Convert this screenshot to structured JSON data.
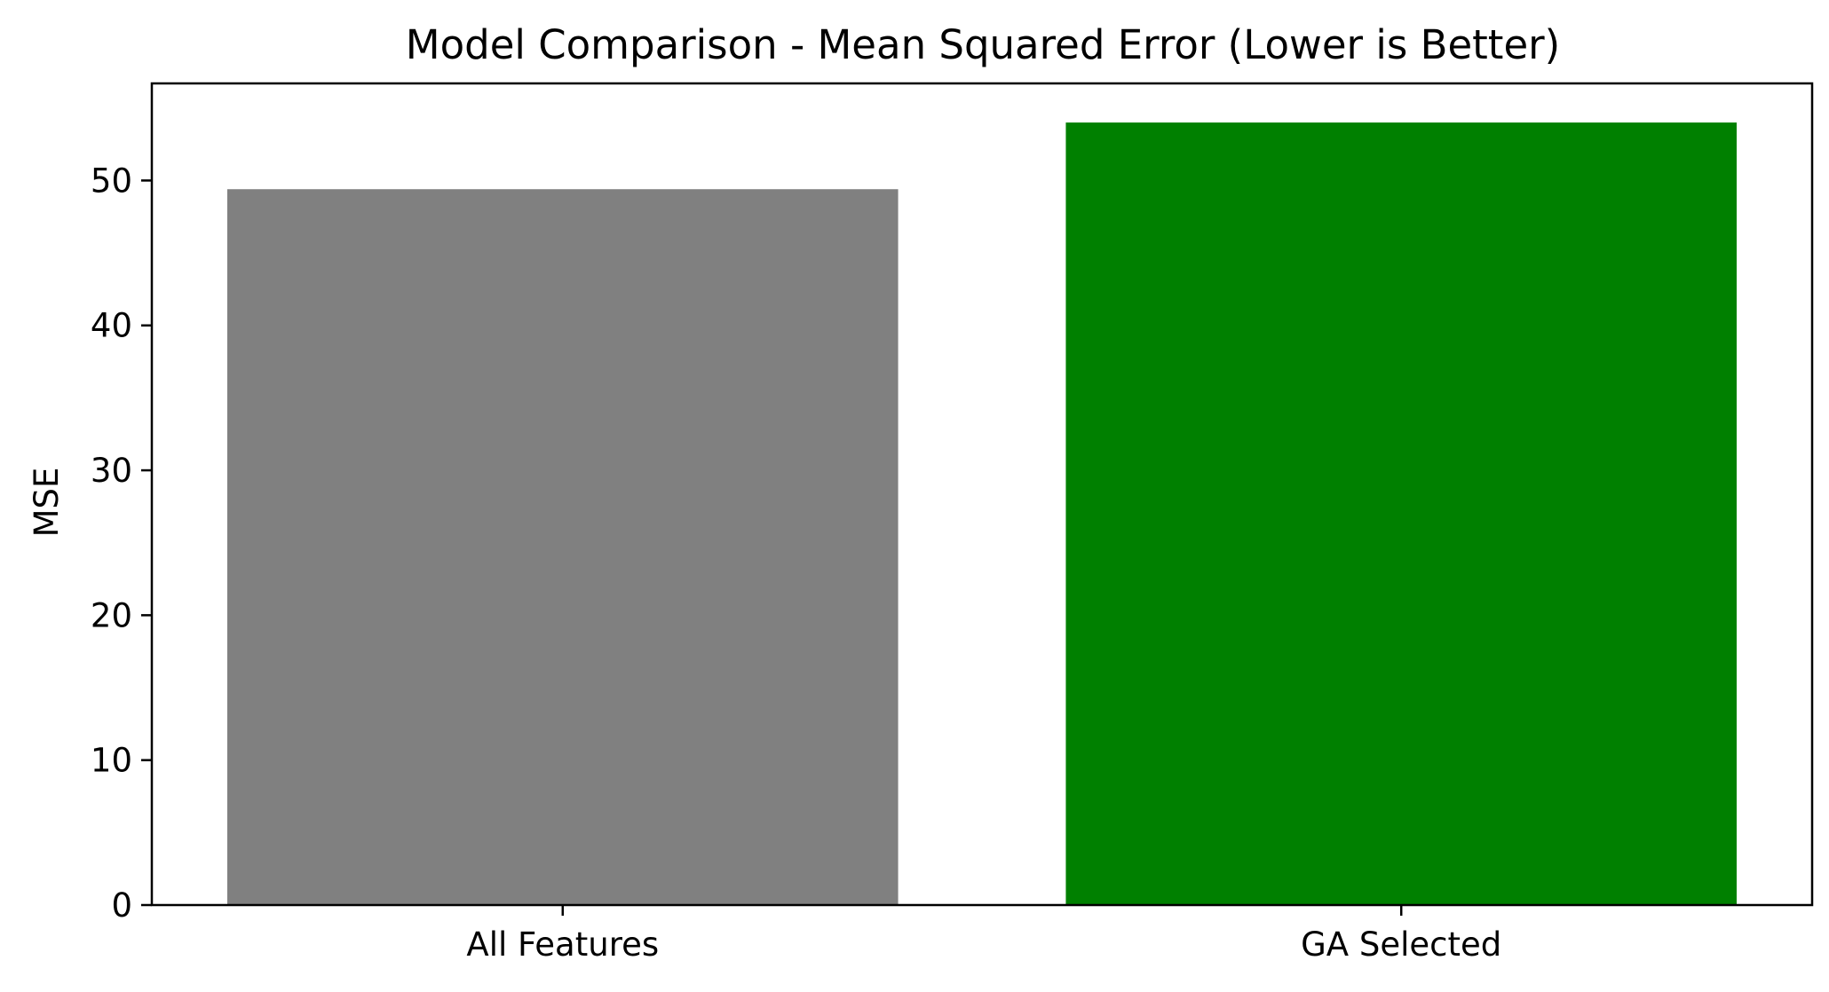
{
  "chart_data": {
    "type": "bar",
    "title": "Model Comparison - Mean Squared Error (Lower is Better)",
    "xlabel": "",
    "ylabel": "MSE",
    "categories": [
      "All Features",
      "GA Selected"
    ],
    "values": [
      49.4,
      54.0
    ],
    "colors": [
      "#808080",
      "#008000"
    ],
    "ylim": [
      0,
      56.7
    ],
    "yticks": [
      0,
      10,
      20,
      30,
      40,
      50
    ],
    "grid": false
  }
}
